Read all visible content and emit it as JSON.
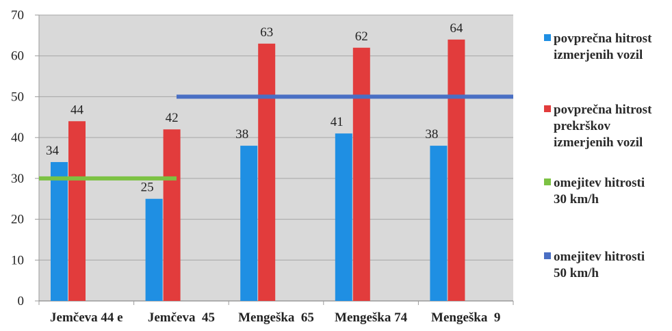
{
  "chart_data": {
    "type": "bar",
    "title": "",
    "xlabel": "",
    "ylabel": "",
    "ylim": [
      0,
      70
    ],
    "yticks": [
      0,
      10,
      20,
      30,
      40,
      50,
      60,
      70
    ],
    "grid": true,
    "legend_position": "right",
    "categories": [
      "Jemčeva 44 e",
      "Jemčeva  45",
      "Mengeška  65",
      "Mengeška 74",
      "Mengeška  9"
    ],
    "series": [
      {
        "name": "povprečna hitrost izmerjenih vozil",
        "legend_lines": [
          "povprečna hitrost",
          "izmerjenih vozil"
        ],
        "color": "#1f8fe3",
        "values": [
          34,
          25,
          38,
          41,
          38
        ],
        "labels": [
          "34",
          "25",
          "38",
          "41",
          "38"
        ]
      },
      {
        "name": "povprečna hitrost prekrškov izmerjenih vozil",
        "legend_lines": [
          "povprečna hitrost",
          "prekrškov",
          "izmerjenih vozil"
        ],
        "color": "#e23c3c",
        "values": [
          44,
          42,
          63,
          62,
          64
        ],
        "labels": [
          "44",
          "42",
          "63",
          "62",
          "64"
        ]
      }
    ],
    "reference_lines": [
      {
        "name": "omejitev hitrosti 30 km/h",
        "legend_lines": [
          "omejitev hitrosti",
          "30 km/h"
        ],
        "color": "#7cc243",
        "value": 30,
        "x_from": "Jemčeva 44 e",
        "x_to": "Jemčeva  45"
      },
      {
        "name": "omejitev hitrosti 50 km/h",
        "legend_lines": [
          "omejitev hitrosti",
          "50 km/h"
        ],
        "color": "#4a6fc4",
        "value": 50,
        "x_from": "Jemčeva  45",
        "x_to": "Mengeška  9"
      }
    ],
    "colors": {
      "plot_background": "#d9d9d9",
      "gridline": "#a6a6a6",
      "axis": "#9a9a9a"
    }
  }
}
